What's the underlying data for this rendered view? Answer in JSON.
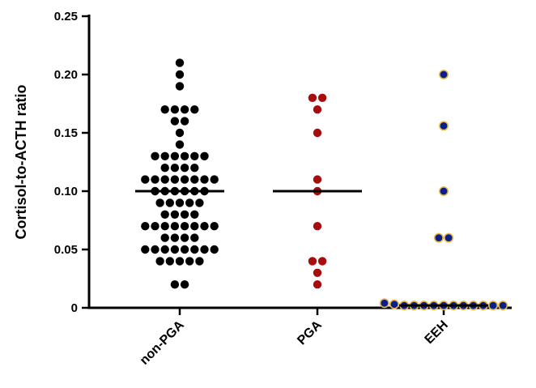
{
  "chart_data": {
    "type": "scatter",
    "title": "",
    "xlabel": "",
    "ylabel": "Cortisol-to-ACTH ratio",
    "ylim": [
      0,
      0.25
    ],
    "y_ticks": [
      "0",
      "0.05",
      "0.10",
      "0.15",
      "0.20",
      "0.25"
    ],
    "y_tick_values": [
      0,
      0.05,
      0.1,
      0.15,
      0.2,
      0.25
    ],
    "grid": false,
    "legend": "none",
    "categories": [
      "non-PGA",
      "PGA",
      "EEH"
    ],
    "series": [
      {
        "fill": "#000000",
        "stroke": "#000000",
        "median": 0.1,
        "values": [
          0.21,
          0.2,
          0.19,
          0.17,
          0.17,
          0.17,
          0.17,
          0.16,
          0.16,
          0.15,
          0.14,
          0.13,
          0.13,
          0.13,
          0.13,
          0.13,
          0.13,
          0.12,
          0.12,
          0.12,
          0.12,
          0.11,
          0.11,
          0.11,
          0.11,
          0.11,
          0.11,
          0.11,
          0.11,
          0.1,
          0.1,
          0.1,
          0.1,
          0.1,
          0.1,
          0.09,
          0.09,
          0.09,
          0.09,
          0.09,
          0.08,
          0.08,
          0.08,
          0.08,
          0.07,
          0.07,
          0.07,
          0.07,
          0.07,
          0.07,
          0.07,
          0.07,
          0.06,
          0.06,
          0.06,
          0.06,
          0.05,
          0.05,
          0.05,
          0.05,
          0.05,
          0.05,
          0.05,
          0.05,
          0.04,
          0.04,
          0.04,
          0.04,
          0.04,
          0.02,
          0.02
        ]
      },
      {
        "fill": "#a80d0d",
        "stroke": "#a80d0d",
        "median": 0.1,
        "values": [
          0.18,
          0.18,
          0.17,
          0.15,
          0.11,
          0.1,
          0.07,
          0.04,
          0.04,
          0.03,
          0.02
        ]
      },
      {
        "fill": "#0a1e8c",
        "stroke": "#e8b84a",
        "median": 0.002,
        "values": [
          0.2,
          0.156,
          0.1,
          0.06,
          0.06,
          0.004,
          0.003,
          0.002,
          0.002,
          0.002,
          0.002,
          0.002,
          0.002,
          0.002,
          0.002,
          0.002,
          0.002,
          0.002
        ]
      }
    ]
  }
}
